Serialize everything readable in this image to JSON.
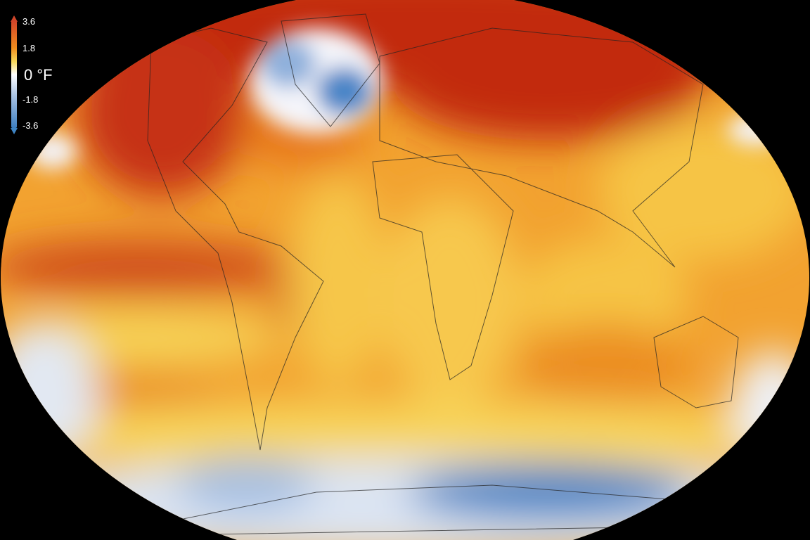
{
  "legend": {
    "ticks": [
      "3.6",
      "1.8",
      "-1.8",
      "-3.6"
    ],
    "zero_label": "0",
    "unit": "°F",
    "colors": {
      "max": "#c0280f",
      "high": "#ef8c1e",
      "mid_warm": "#f7d95a",
      "zero": "#ffffff",
      "cool": "#a9c3e4",
      "min": "#3d7fc1"
    }
  },
  "map": {
    "projection": "robinson-like ellipse",
    "ocean_base_color": "#f2a32a"
  }
}
